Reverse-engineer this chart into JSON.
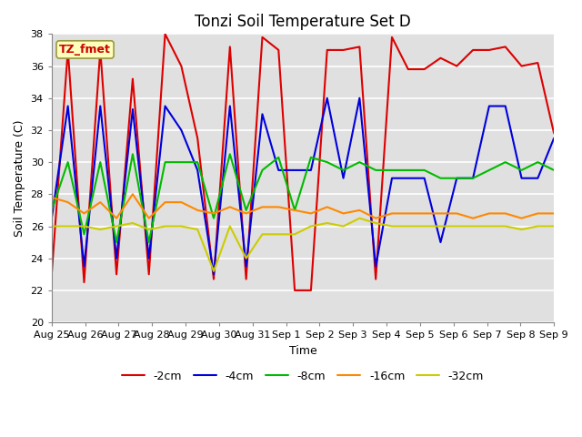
{
  "title": "Tonzi Soil Temperature Set D",
  "xlabel": "Time",
  "ylabel": "Soil Temperature (C)",
  "ylim": [
    20,
    38
  ],
  "annotation": "TZ_fmet",
  "x_labels": [
    "Aug 25",
    "Aug 26",
    "Aug 27",
    "Aug 28",
    "Aug 29",
    "Aug 30",
    "Aug 31",
    "Sep 1",
    "Sep 2",
    "Sep 3",
    "Sep 4",
    "Sep 5",
    "Sep 6",
    "Sep 7",
    "Sep 8",
    "Sep 9"
  ],
  "series": {
    "-2cm": {
      "color": "#dd0000",
      "data": [
        23.0,
        37.0,
        22.5,
        37.0,
        23.0,
        35.2,
        23.0,
        38.0,
        36.0,
        31.5,
        22.7,
        37.2,
        22.7,
        37.8,
        37.0,
        22.0,
        22.0,
        37.0,
        37.0,
        37.2,
        22.7,
        37.8,
        35.8,
        35.8,
        36.5,
        36.0,
        37.0,
        37.0,
        37.2,
        36.0,
        36.2,
        31.8
      ]
    },
    "-4cm": {
      "color": "#0000dd",
      "data": [
        26.5,
        33.5,
        23.5,
        33.5,
        24.0,
        33.3,
        24.0,
        33.5,
        32.0,
        29.5,
        23.0,
        33.5,
        23.5,
        33.0,
        29.5,
        29.5,
        29.5,
        34.0,
        29.0,
        34.0,
        23.5,
        29.0,
        29.0,
        29.0,
        25.0,
        29.0,
        29.0,
        33.5,
        33.5,
        29.0,
        29.0,
        31.5
      ]
    },
    "-8cm": {
      "color": "#00bb00",
      "data": [
        27.0,
        30.0,
        25.5,
        30.0,
        25.0,
        30.5,
        25.0,
        30.0,
        30.0,
        30.0,
        26.5,
        30.5,
        27.0,
        29.5,
        30.3,
        27.0,
        30.3,
        30.0,
        29.5,
        30.0,
        29.5,
        29.5,
        29.5,
        29.5,
        29.0,
        29.0,
        29.0,
        29.5,
        30.0,
        29.5,
        30.0,
        29.5
      ]
    },
    "-16cm": {
      "color": "#ff8800",
      "data": [
        27.8,
        27.5,
        26.8,
        27.5,
        26.5,
        28.0,
        26.5,
        27.5,
        27.5,
        27.0,
        26.8,
        27.2,
        26.8,
        27.2,
        27.2,
        27.0,
        26.8,
        27.2,
        26.8,
        27.0,
        26.5,
        26.8,
        26.8,
        26.8,
        26.8,
        26.8,
        26.5,
        26.8,
        26.8,
        26.5,
        26.8,
        26.8
      ]
    },
    "-32cm": {
      "color": "#cccc00",
      "data": [
        26.0,
        26.0,
        26.0,
        25.8,
        26.0,
        26.2,
        25.8,
        26.0,
        26.0,
        25.8,
        23.2,
        26.0,
        24.0,
        25.5,
        25.5,
        25.5,
        26.0,
        26.2,
        26.0,
        26.5,
        26.2,
        26.0,
        26.0,
        26.0,
        26.0,
        26.0,
        26.0,
        26.0,
        26.0,
        25.8,
        26.0,
        26.0
      ]
    }
  },
  "n_ticks": 16,
  "n_points": 32,
  "bg_color": "#e0e0e0",
  "grid_color": "#ffffff",
  "title_fontsize": 12,
  "label_fontsize": 9,
  "tick_fontsize": 8
}
